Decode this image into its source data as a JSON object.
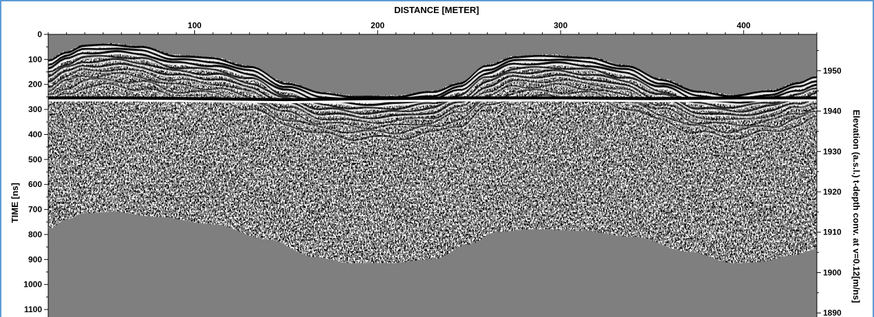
{
  "chart_data": {
    "type": "heatmap",
    "title": "",
    "xlabel": "DISTANCE [METER]",
    "ylabel": "TIME [ns]",
    "y2label": "Elevation (a.s.l.) t-depth conv. at v=0.12[m/ns]",
    "xlim": [
      20,
      440
    ],
    "ylim": [
      1130,
      0
    ],
    "y2lim": [
      1889,
      1959
    ],
    "x_ticks": [
      100,
      200,
      300,
      400
    ],
    "y_ticks": [
      0,
      100,
      200,
      300,
      400,
      500,
      600,
      700,
      800,
      900,
      1000,
      1100
    ],
    "y2_ticks": [
      1890,
      1900,
      1910,
      1920,
      1930,
      1940,
      1950
    ],
    "colormap": "grayscale",
    "background_color": "#7f7f7f",
    "surface_top_ns": [
      {
        "x": 20,
        "y": 100
      },
      {
        "x": 30,
        "y": 65
      },
      {
        "x": 40,
        "y": 40
      },
      {
        "x": 55,
        "y": 35
      },
      {
        "x": 70,
        "y": 45
      },
      {
        "x": 90,
        "y": 80
      },
      {
        "x": 110,
        "y": 90
      },
      {
        "x": 130,
        "y": 125
      },
      {
        "x": 150,
        "y": 190
      },
      {
        "x": 170,
        "y": 230
      },
      {
        "x": 190,
        "y": 245
      },
      {
        "x": 210,
        "y": 243
      },
      {
        "x": 230,
        "y": 225
      },
      {
        "x": 245,
        "y": 190
      },
      {
        "x": 260,
        "y": 120
      },
      {
        "x": 275,
        "y": 85
      },
      {
        "x": 295,
        "y": 80
      },
      {
        "x": 315,
        "y": 90
      },
      {
        "x": 335,
        "y": 120
      },
      {
        "x": 355,
        "y": 175
      },
      {
        "x": 375,
        "y": 225
      },
      {
        "x": 395,
        "y": 240
      },
      {
        "x": 415,
        "y": 220
      },
      {
        "x": 430,
        "y": 190
      },
      {
        "x": 440,
        "y": 165
      }
    ],
    "data_bottom_ns": [
      {
        "x": 20,
        "y": 780
      },
      {
        "x": 30,
        "y": 740
      },
      {
        "x": 40,
        "y": 715
      },
      {
        "x": 55,
        "y": 710
      },
      {
        "x": 80,
        "y": 730
      },
      {
        "x": 110,
        "y": 760
      },
      {
        "x": 140,
        "y": 820
      },
      {
        "x": 165,
        "y": 890
      },
      {
        "x": 185,
        "y": 915
      },
      {
        "x": 205,
        "y": 915
      },
      {
        "x": 230,
        "y": 900
      },
      {
        "x": 250,
        "y": 840
      },
      {
        "x": 265,
        "y": 790
      },
      {
        "x": 285,
        "y": 780
      },
      {
        "x": 310,
        "y": 785
      },
      {
        "x": 340,
        "y": 810
      },
      {
        "x": 370,
        "y": 870
      },
      {
        "x": 395,
        "y": 915
      },
      {
        "x": 410,
        "y": 910
      },
      {
        "x": 425,
        "y": 885
      },
      {
        "x": 440,
        "y": 860
      }
    ],
    "strong_reflector_ns": [
      {
        "x": 20,
        "y": 255
      },
      {
        "x": 60,
        "y": 255
      },
      {
        "x": 100,
        "y": 258
      },
      {
        "x": 150,
        "y": 262
      },
      {
        "x": 200,
        "y": 258
      },
      {
        "x": 250,
        "y": 255
      },
      {
        "x": 300,
        "y": 255
      },
      {
        "x": 350,
        "y": 258
      },
      {
        "x": 400,
        "y": 255
      },
      {
        "x": 440,
        "y": 255
      }
    ],
    "grid": false
  }
}
